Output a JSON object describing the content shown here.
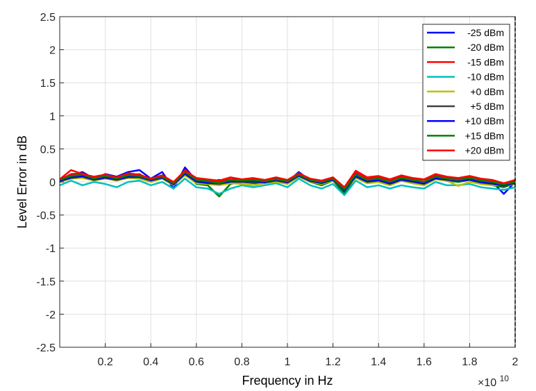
{
  "chart_data": {
    "type": "line",
    "title": "",
    "xlabel": "Frequency in Hz",
    "ylabel": "Level Error in dB",
    "x_exponent_label": "×10",
    "x_exponent_power": "10",
    "xlim": [
      0,
      20000000000
    ],
    "ylim": [
      -2.5,
      2.5
    ],
    "x_scale": 10000000000,
    "x_ticks": [
      0.2,
      0.4,
      0.6,
      0.8,
      1,
      1.2,
      1.4,
      1.6,
      1.8,
      2
    ],
    "x_tick_labels": [
      "0.2",
      "0.4",
      "0.6",
      "0.8",
      "1",
      "1.2",
      "1.4",
      "1.6",
      "1.8",
      "2"
    ],
    "y_ticks": [
      2.5,
      2,
      1.5,
      1,
      0.5,
      0,
      -0.5,
      -1,
      -1.5,
      -2,
      -2.5
    ],
    "y_tick_labels": [
      "2.5",
      "2",
      "1.5",
      "1",
      "0.5",
      "0",
      "-0.5",
      "-1",
      "-1.5",
      "-2",
      "-2.5"
    ],
    "grid": true,
    "legend_position": "top-right",
    "x": [
      0.0,
      0.05,
      0.1,
      0.15,
      0.2,
      0.25,
      0.3,
      0.35,
      0.4,
      0.45,
      0.5,
      0.55,
      0.6,
      0.65,
      0.7,
      0.75,
      0.8,
      0.85,
      0.9,
      0.95,
      1.0,
      1.05,
      1.1,
      1.15,
      1.2,
      1.25,
      1.3,
      1.35,
      1.4,
      1.45,
      1.5,
      1.55,
      1.6,
      1.65,
      1.7,
      1.75,
      1.8,
      1.85,
      1.9,
      1.95,
      2.0
    ],
    "series": [
      {
        "name": "-25 dBm",
        "color": "#0000ff",
        "values": [
          0.02,
          0.1,
          0.15,
          0.05,
          0.12,
          0.08,
          0.15,
          0.18,
          0.05,
          0.15,
          -0.1,
          0.22,
          0.02,
          0.0,
          0.03,
          0.02,
          0.01,
          0.03,
          0.0,
          0.05,
          0.0,
          0.15,
          0.02,
          -0.02,
          0.05,
          -0.15,
          0.12,
          0.02,
          0.04,
          0.0,
          0.05,
          0.02,
          0.0,
          0.08,
          0.05,
          0.03,
          0.06,
          0.02,
          0.0,
          -0.18,
          0.0
        ]
      },
      {
        "name": "-20 dBm",
        "color": "#008000",
        "values": [
          0.0,
          0.08,
          0.1,
          0.03,
          0.08,
          0.04,
          0.1,
          0.12,
          0.02,
          0.08,
          -0.05,
          0.15,
          -0.03,
          -0.05,
          -0.22,
          -0.03,
          0.0,
          -0.02,
          -0.02,
          0.02,
          -0.03,
          0.1,
          0.0,
          -0.05,
          0.02,
          -0.18,
          0.08,
          -0.02,
          0.0,
          -0.05,
          0.02,
          -0.02,
          -0.05,
          0.05,
          0.02,
          0.0,
          0.03,
          -0.03,
          -0.05,
          -0.08,
          -0.02
        ]
      },
      {
        "name": "-15 dBm",
        "color": "#ff0000",
        "values": [
          0.03,
          0.12,
          0.13,
          0.06,
          0.1,
          0.06,
          0.12,
          0.1,
          0.04,
          0.1,
          -0.02,
          0.18,
          0.05,
          0.03,
          0.0,
          0.06,
          0.03,
          0.05,
          0.02,
          0.06,
          0.02,
          0.12,
          0.04,
          0.0,
          0.06,
          -0.1,
          0.15,
          0.05,
          0.07,
          0.02,
          0.08,
          0.05,
          0.03,
          0.1,
          0.07,
          0.05,
          0.08,
          0.04,
          0.02,
          -0.05,
          0.02
        ]
      },
      {
        "name": "-10 dBm",
        "color": "#00bfbf",
        "values": [
          -0.05,
          0.02,
          -0.05,
          0.0,
          -0.03,
          -0.08,
          0.0,
          0.02,
          -0.05,
          0.0,
          -0.1,
          0.05,
          -0.08,
          -0.1,
          -0.18,
          -0.1,
          -0.05,
          -0.08,
          -0.05,
          -0.02,
          -0.08,
          0.05,
          -0.05,
          -0.1,
          -0.03,
          -0.2,
          0.02,
          -0.08,
          -0.05,
          -0.1,
          -0.05,
          -0.08,
          -0.1,
          0.0,
          -0.05,
          -0.05,
          -0.03,
          -0.08,
          -0.1,
          -0.12,
          -0.08
        ]
      },
      {
        "name": "+0 dBm",
        "color": "#bfbf00",
        "values": [
          0.0,
          0.05,
          0.06,
          0.02,
          0.05,
          0.02,
          0.06,
          0.05,
          0.0,
          0.05,
          -0.05,
          0.1,
          -0.02,
          -0.03,
          -0.05,
          -0.02,
          -0.03,
          -0.05,
          -0.02,
          0.0,
          -0.03,
          0.08,
          0.0,
          -0.03,
          0.02,
          -0.12,
          0.06,
          -0.02,
          0.0,
          -0.05,
          0.02,
          -0.02,
          -0.05,
          0.04,
          0.02,
          -0.06,
          0.0,
          -0.03,
          -0.05,
          -0.05,
          -0.04
        ]
      },
      {
        "name": "+5 dBm",
        "color": "#404040",
        "values": [
          0.01,
          0.06,
          0.08,
          0.03,
          0.06,
          0.03,
          0.07,
          0.07,
          0.02,
          0.06,
          -0.04,
          0.12,
          0.0,
          -0.02,
          -0.03,
          0.0,
          0.0,
          0.0,
          -0.01,
          0.02,
          -0.01,
          0.09,
          0.01,
          -0.02,
          0.03,
          -0.13,
          0.08,
          0.0,
          0.02,
          -0.03,
          0.03,
          0.0,
          -0.03,
          0.05,
          0.03,
          0.01,
          0.03,
          -0.01,
          -0.03,
          -0.06,
          -0.02
        ]
      },
      {
        "name": "+10 dBm",
        "color": "#0000ff",
        "values": [
          0.02,
          0.07,
          0.09,
          0.04,
          0.07,
          0.04,
          0.08,
          0.08,
          0.03,
          0.07,
          -0.03,
          0.13,
          0.01,
          -0.01,
          -0.02,
          0.01,
          0.01,
          0.01,
          0.0,
          0.03,
          0.0,
          0.1,
          0.02,
          -0.01,
          0.04,
          -0.12,
          0.09,
          0.01,
          0.03,
          -0.02,
          0.04,
          0.01,
          -0.02,
          0.06,
          0.04,
          0.02,
          0.04,
          0.0,
          -0.02,
          -0.05,
          -0.01
        ]
      },
      {
        "name": "+15 dBm",
        "color": "#008000",
        "values": [
          0.03,
          0.09,
          0.11,
          0.05,
          0.09,
          0.05,
          0.1,
          0.09,
          0.04,
          0.08,
          -0.02,
          0.15,
          0.03,
          0.01,
          -0.02,
          0.03,
          0.02,
          0.03,
          0.01,
          0.04,
          0.01,
          0.11,
          0.03,
          0.0,
          0.05,
          -0.11,
          0.11,
          0.03,
          0.05,
          0.0,
          0.06,
          0.03,
          0.0,
          0.08,
          0.05,
          0.03,
          0.06,
          0.02,
          0.0,
          -0.04,
          0.0
        ]
      },
      {
        "name": "+20 dBm",
        "color": "#ff0000",
        "values": [
          0.04,
          0.18,
          0.12,
          0.08,
          0.11,
          0.07,
          0.13,
          0.11,
          0.05,
          0.1,
          0.0,
          0.17,
          0.06,
          0.04,
          0.02,
          0.07,
          0.04,
          0.06,
          0.03,
          0.07,
          0.03,
          0.13,
          0.05,
          0.02,
          0.07,
          -0.08,
          0.17,
          0.07,
          0.09,
          0.04,
          0.1,
          0.06,
          0.04,
          0.12,
          0.08,
          0.06,
          0.09,
          0.05,
          0.03,
          -0.02,
          0.03
        ]
      }
    ]
  }
}
